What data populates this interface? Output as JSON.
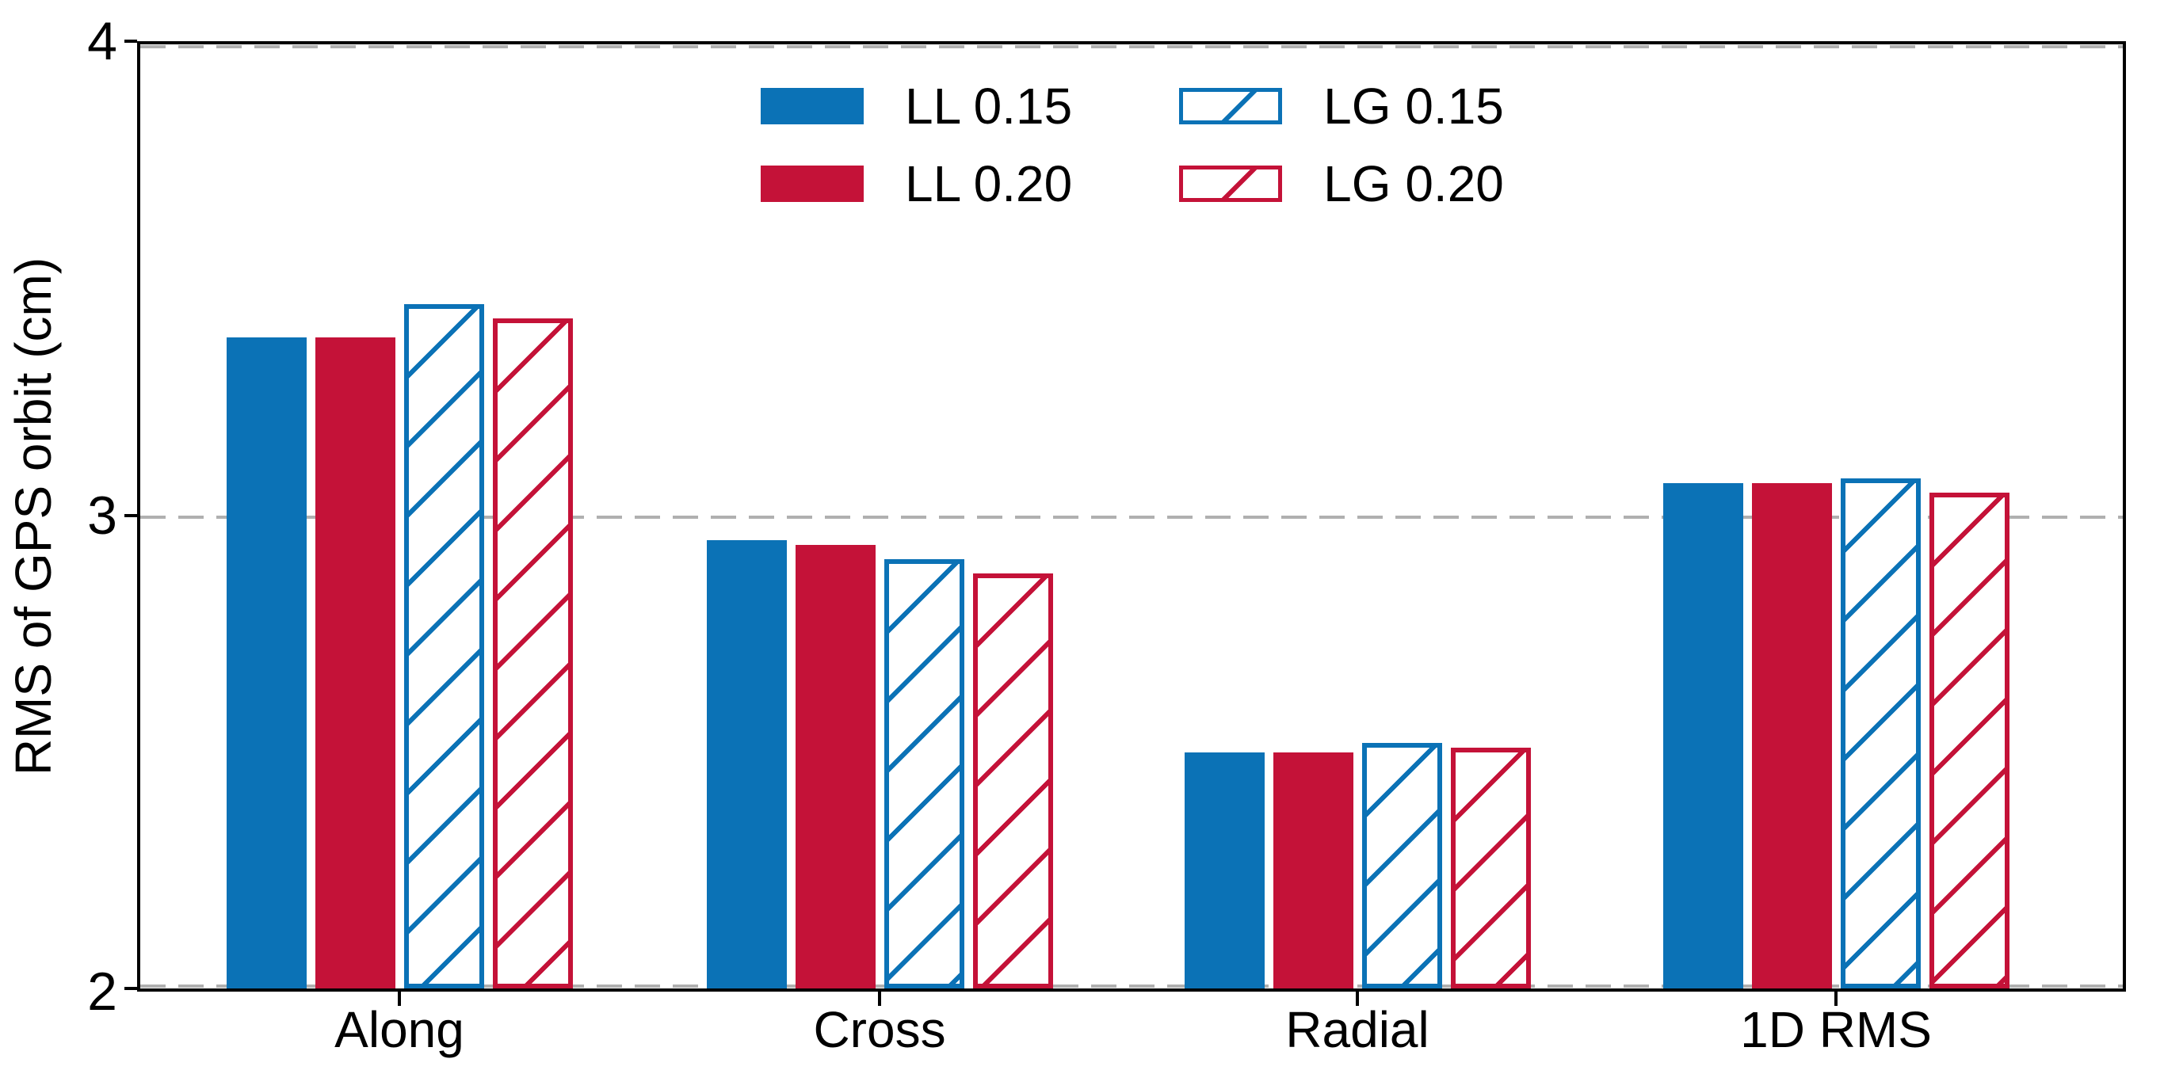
{
  "chart_data": {
    "type": "bar",
    "title": "",
    "xlabel": "",
    "ylabel": "RMS of GPS orbit (cm)",
    "categories": [
      "Along",
      "Cross",
      "Radial",
      "1D RMS"
    ],
    "series": [
      {
        "name": "LL 0.15",
        "style": "solid",
        "color": "#0b72b6",
        "values": [
          3.38,
          2.95,
          2.5,
          3.07
        ]
      },
      {
        "name": "LL 0.20",
        "style": "solid",
        "color": "#c41238",
        "values": [
          3.38,
          2.94,
          2.5,
          3.07
        ]
      },
      {
        "name": "LG 0.15",
        "style": "hatched",
        "color": "#0b72b6",
        "values": [
          3.45,
          2.91,
          2.52,
          3.08
        ]
      },
      {
        "name": "LG 0.20",
        "style": "hatched",
        "color": "#c41238",
        "values": [
          3.42,
          2.88,
          2.51,
          3.05
        ]
      }
    ],
    "ylim": [
      2,
      4
    ],
    "yticks": [
      2,
      3,
      4
    ],
    "ytick_labels_top_to_bottom": [
      "4",
      "3",
      "2"
    ],
    "grid": {
      "axis": "y",
      "values": [
        2,
        3,
        4
      ],
      "style": "dashed",
      "color": "#b0b0b0"
    },
    "legend_position": "upper center (inside plot)",
    "bar_hatch_for_LG": "/",
    "background_color": "#ffffff",
    "axis_color": "#000000"
  }
}
